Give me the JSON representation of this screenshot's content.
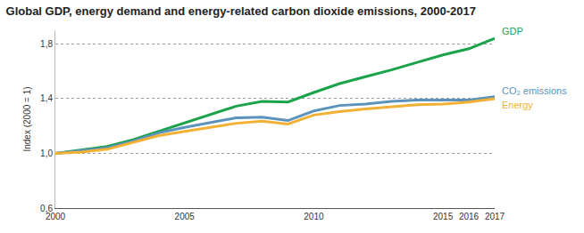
{
  "chart_data": {
    "type": "line",
    "title": "Global GDP, energy demand and energy-related carbon dioxide emissions, 2000-2017",
    "y_label": "Index (2000 = 1)",
    "x": [
      2000,
      2001,
      2002,
      2003,
      2004,
      2005,
      2006,
      2007,
      2008,
      2009,
      2010,
      2011,
      2012,
      2013,
      2014,
      2015,
      2016,
      2017
    ],
    "series": [
      {
        "name": "GDP",
        "color": "#1aa34a",
        "values": [
          1.0,
          1.025,
          1.05,
          1.1,
          1.16,
          1.22,
          1.28,
          1.345,
          1.38,
          1.375,
          1.445,
          1.51,
          1.56,
          1.61,
          1.665,
          1.72,
          1.765,
          1.84
        ]
      },
      {
        "name": "CO₂ emissions",
        "color": "#5b93bd",
        "values": [
          1.0,
          1.02,
          1.04,
          1.09,
          1.15,
          1.19,
          1.225,
          1.26,
          1.265,
          1.24,
          1.31,
          1.35,
          1.36,
          1.38,
          1.39,
          1.39,
          1.39,
          1.415
        ]
      },
      {
        "name": "Energy",
        "color": "#f2b134",
        "values": [
          1.0,
          1.01,
          1.03,
          1.08,
          1.13,
          1.16,
          1.19,
          1.22,
          1.235,
          1.215,
          1.28,
          1.305,
          1.325,
          1.34,
          1.355,
          1.36,
          1.375,
          1.4
        ]
      }
    ],
    "xlim": [
      2000,
      2017
    ],
    "xticks": [
      2000,
      2005,
      2010,
      2015,
      2016,
      2017
    ],
    "ylim": [
      0.6,
      1.9
    ],
    "yticks": [
      {
        "value": 0.6,
        "label": "0,6"
      },
      {
        "value": 1.0,
        "label": "1,0"
      },
      {
        "value": 1.4,
        "label": "1,4"
      },
      {
        "value": 1.8,
        "label": "1,8"
      }
    ],
    "grid": true
  }
}
